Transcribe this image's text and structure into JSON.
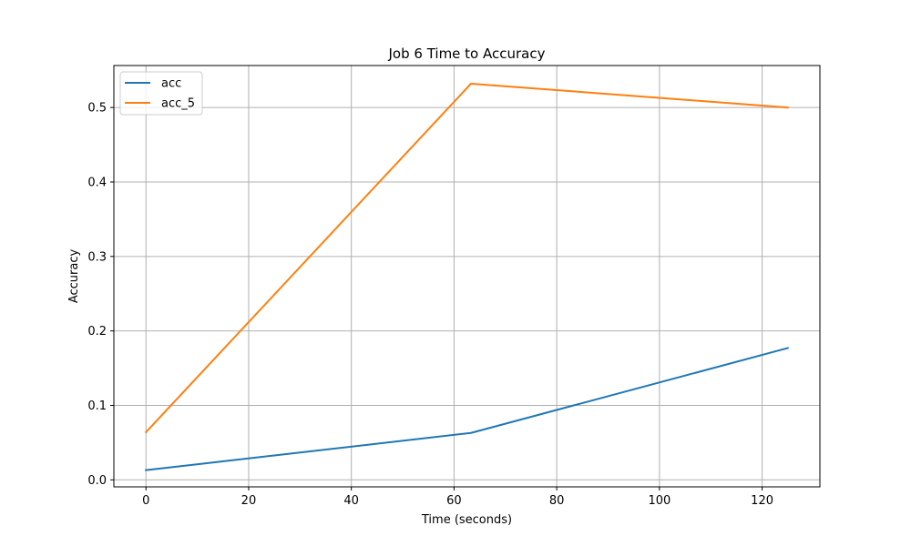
{
  "chart_data": {
    "type": "line",
    "title": "Job 6 Time to Accuracy",
    "xlabel": "Time (seconds)",
    "ylabel": "Accuracy",
    "xlim": [
      -6.25,
      131.25
    ],
    "ylim": [
      -0.0094,
      0.5564
    ],
    "xticks": [
      0,
      20,
      40,
      60,
      80,
      100,
      120
    ],
    "yticks": [
      0.0,
      0.1,
      0.2,
      0.3,
      0.4,
      0.5
    ],
    "grid": true,
    "legend_position": "top-left",
    "series": [
      {
        "name": "acc",
        "color": "#1f77b4",
        "x": [
          0,
          63.3,
          125
        ],
        "y": [
          0.013,
          0.063,
          0.177
        ]
      },
      {
        "name": "acc_5",
        "color": "#ff7f0e",
        "x": [
          0,
          63.3,
          125
        ],
        "y": [
          0.064,
          0.532,
          0.5
        ]
      }
    ]
  }
}
